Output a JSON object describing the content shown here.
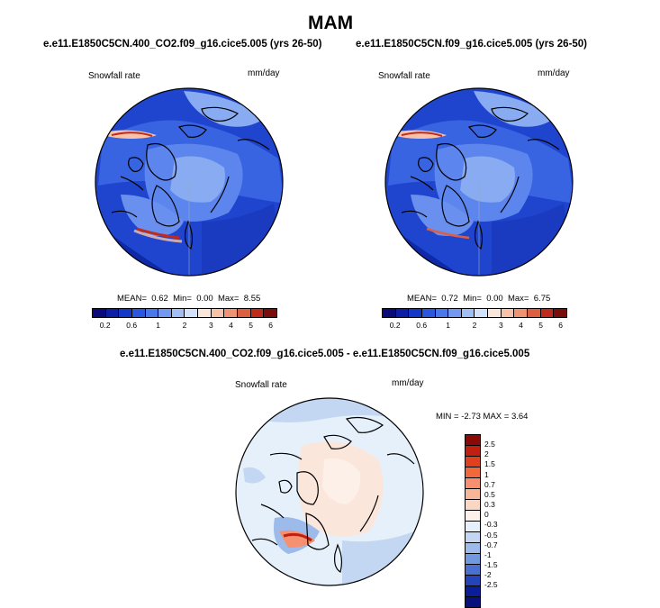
{
  "title": "MAM",
  "panels": [
    {
      "case": "e.e11.E1850C5CN.400_CO2.f09_g16.cice5.005 (yrs 26-50)",
      "variable": "Snowfall rate",
      "units": "mm/day",
      "mean_label": "MEAN=",
      "mean": "0.62",
      "min_label": "Min=",
      "min": "0.00",
      "max_label": "Max=",
      "max": "8.55"
    },
    {
      "case": "e.e11.E1850C5CN.f09_g16.cice5.005 (yrs 26-50)",
      "variable": "Snowfall rate",
      "units": "mm/day",
      "mean_label": "MEAN=",
      "mean": "0.72",
      "min_label": "Min=",
      "min": "0.00",
      "max_label": "Max=",
      "max": "6.75"
    }
  ],
  "diff": {
    "case": "e.e11.E1850C5CN.400_CO2.f09_g16.cice5.005 - e.e11.E1850C5CN.f09_g16.cice5.005",
    "variable": "Snowfall rate",
    "units": "mm/day",
    "minmax": "MIN =  -2.73 MAX =   3.64"
  },
  "colorbar": {
    "labels": [
      "0.2",
      "0.6",
      "1",
      "2",
      "3",
      "4",
      "5",
      "6"
    ],
    "colors": [
      "#0a0a7a",
      "#0c1ea6",
      "#1338c8",
      "#2a57de",
      "#4a78ea",
      "#7298f0",
      "#a2bff5",
      "#d2e2fa",
      "#fbe6dc",
      "#f6c3aa",
      "#ee9474",
      "#dd5f42",
      "#c02a1c",
      "#7a0c0c"
    ]
  },
  "diff_colorbar": {
    "labels": [
      "2.5",
      "2",
      "1.5",
      "1",
      "0.7",
      "0.5",
      "0.3",
      "0",
      "-0.3",
      "-0.5",
      "-0.7",
      "-1",
      "-1.5",
      "-2",
      "-2.5"
    ],
    "colors": [
      "#8a0a06",
      "#c02010",
      "#e0401f",
      "#f0683c",
      "#f59170",
      "#f8b699",
      "#fbd7c3",
      "#fdf0e8",
      "#e6f0fb",
      "#c3d7f3",
      "#9cbaea",
      "#7298df",
      "#4a70d2",
      "#2444b8",
      "#0a1e9a",
      "#06127a"
    ]
  }
}
